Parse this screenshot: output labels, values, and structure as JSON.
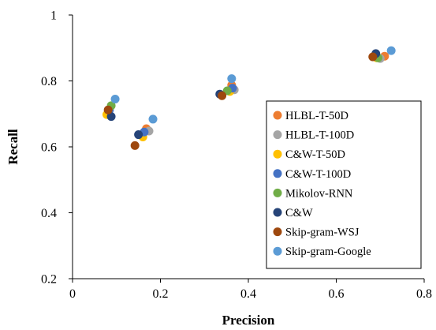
{
  "chart_data": {
    "type": "scatter",
    "title": "",
    "xlabel": "Precision",
    "ylabel": "Recall",
    "xlim": [
      0,
      0.8
    ],
    "ylim": [
      0.2,
      1.0
    ],
    "xticks": [
      "0",
      "0.2",
      "0.4",
      "0.6",
      "0.8"
    ],
    "yticks": [
      "0.2",
      "0.4",
      "0.6",
      "0.8",
      "1"
    ],
    "grid": false,
    "legend_position": "right",
    "series": [
      {
        "name": "HLBL-T-50D",
        "color": "#ED7D31",
        "points": [
          [
            0.168,
            0.655
          ],
          [
            0.362,
            0.787
          ],
          [
            0.71,
            0.875
          ]
        ]
      },
      {
        "name": "HLBL-T-100D",
        "color": "#A5A5A5",
        "points": [
          [
            0.174,
            0.648
          ],
          [
            0.368,
            0.773
          ],
          [
            0.7,
            0.868
          ]
        ]
      },
      {
        "name": "C&W-T-50D",
        "color": "#FFC000",
        "points": [
          [
            0.078,
            0.698
          ],
          [
            0.16,
            0.63
          ],
          [
            0.358,
            0.768
          ],
          [
            0.692,
            0.87
          ]
        ]
      },
      {
        "name": "C&W-T-100D",
        "color": "#4472C4",
        "points": [
          [
            0.084,
            0.712
          ],
          [
            0.163,
            0.645
          ],
          [
            0.364,
            0.778
          ],
          [
            0.69,
            0.88
          ]
        ]
      },
      {
        "name": "Mikolov-RNN",
        "color": "#70AD47",
        "points": [
          [
            0.088,
            0.725
          ],
          [
            0.352,
            0.77
          ],
          [
            0.695,
            0.87
          ]
        ]
      },
      {
        "name": "C&W",
        "color": "#264478",
        "points": [
          [
            0.088,
            0.692
          ],
          [
            0.15,
            0.637
          ],
          [
            0.335,
            0.76
          ],
          [
            0.69,
            0.883
          ]
        ]
      },
      {
        "name": "Skip-gram-WSJ",
        "color": "#9E480E",
        "points": [
          [
            0.081,
            0.712
          ],
          [
            0.142,
            0.604
          ],
          [
            0.34,
            0.755
          ],
          [
            0.683,
            0.873
          ]
        ]
      },
      {
        "name": "Skip-gram-Google",
        "color": "#5B9BD5",
        "points": [
          [
            0.097,
            0.745
          ],
          [
            0.183,
            0.684
          ],
          [
            0.362,
            0.807
          ],
          [
            0.725,
            0.892
          ]
        ]
      }
    ]
  }
}
